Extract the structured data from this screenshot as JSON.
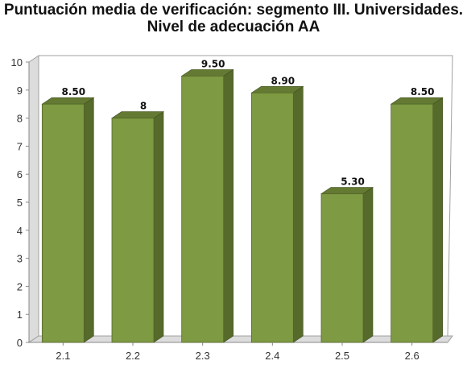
{
  "chart_data": {
    "type": "bar",
    "title_line1": "Puntuación media de verificación: segmento III. Universidades.",
    "title_line2": "Nivel de adecuación AA",
    "categories": [
      "2.1",
      "2.2",
      "2.3",
      "2.4",
      "2.5",
      "2.6"
    ],
    "values": [
      8.5,
      8,
      9.5,
      8.9,
      5.3,
      8.5
    ],
    "value_labels": [
      "8.50",
      "8",
      "9.50",
      "8.90",
      "5.30",
      "8.50"
    ],
    "yticks": [
      "0",
      "1",
      "2",
      "3",
      "4",
      "5",
      "6",
      "7",
      "8",
      "9",
      "10"
    ],
    "ylim": [
      0,
      10
    ],
    "grid": false,
    "colors": {
      "bar_front": "#7e9a42",
      "bar_side": "#566a2b",
      "bar_top": "#647a33",
      "wall": "#dcdcdc"
    }
  }
}
